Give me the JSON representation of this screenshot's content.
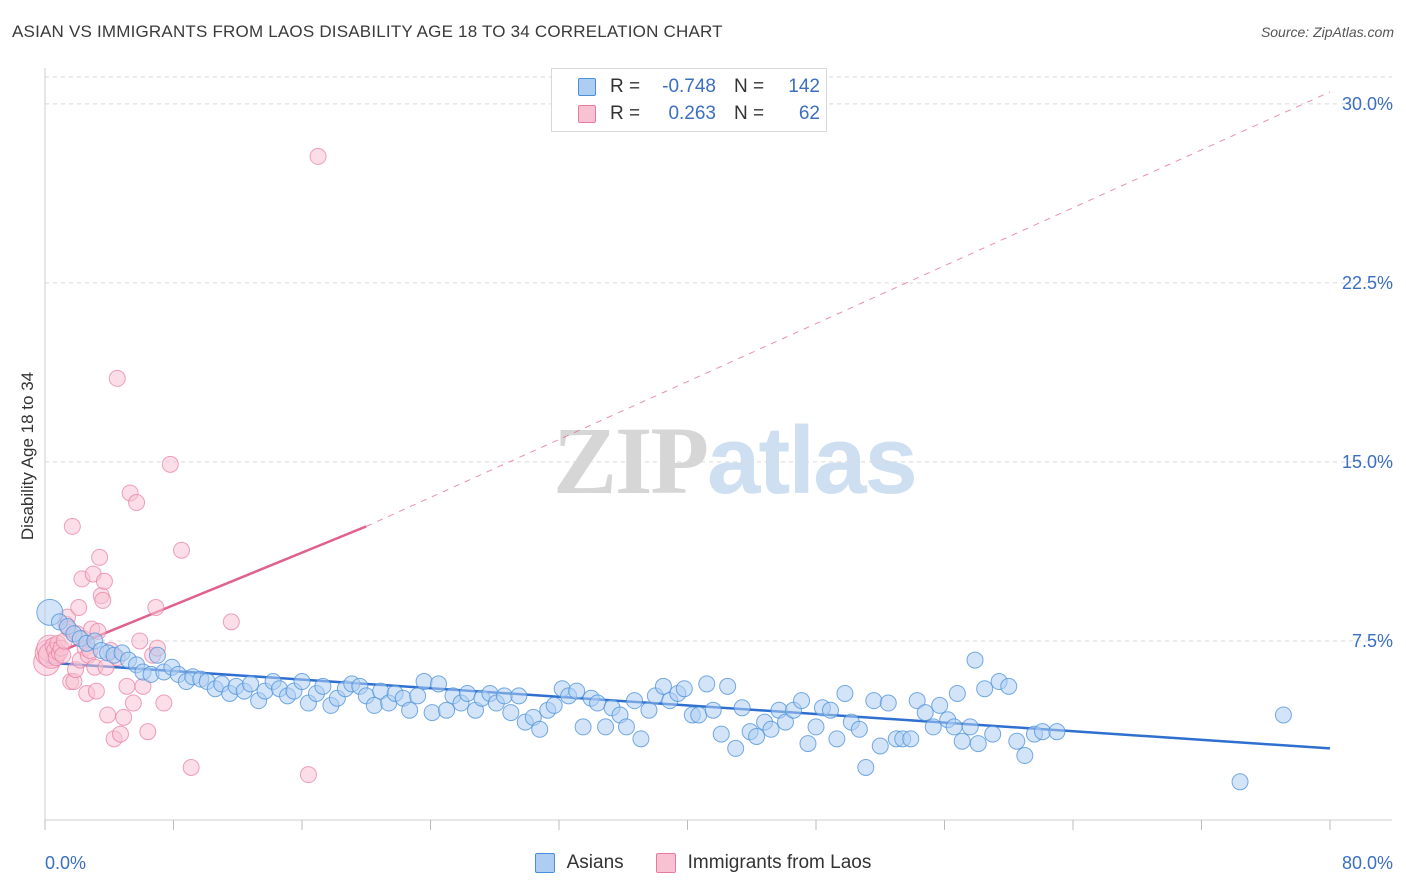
{
  "title": "ASIAN VS IMMIGRANTS FROM LAOS DISABILITY AGE 18 TO 34 CORRELATION CHART",
  "source": "Source: ZipAtlas.com",
  "watermark": {
    "zip": "ZIP",
    "atlas": "atlas"
  },
  "colors": {
    "asians": "#4a90d9",
    "asians_fill": "#aecdf3",
    "asians_line": "#2f6fcf",
    "laos": "#e87aa0",
    "laos_fill": "#f7c3d3",
    "laos_line": "#e0608e",
    "axis_label": "#3a6fc2",
    "grid": "#d9d9d9"
  },
  "legend": {
    "asians": {
      "r_label": "R =",
      "r_value": "-0.748",
      "n_label": "N =",
      "n_value": "142"
    },
    "laos": {
      "r_label": "R =",
      "r_value": "0.263",
      "n_label": "N =",
      "n_value": "62"
    }
  },
  "chart_data": {
    "type": "scatter",
    "title": "ASIAN VS IMMIGRANTS FROM LAOS DISABILITY AGE 18 TO 34 CORRELATION CHART",
    "xlabel": "",
    "ylabel": "Disability Age 18 to 34",
    "xlim": [
      0,
      80
    ],
    "ylim": [
      0,
      31
    ],
    "x_tick_labels": [
      "0.0%",
      "80.0%"
    ],
    "y_ticks": [
      7.5,
      15.0,
      22.5,
      30.0
    ],
    "y_tick_labels": [
      "7.5%",
      "15.0%",
      "22.5%",
      "30.0%"
    ],
    "grid": true,
    "legend_position": "top-center",
    "series": [
      {
        "name": "Asians",
        "trend": {
          "x0": 0,
          "y0": 6.6,
          "x1": 80,
          "y1": 3.0
        },
        "points": [
          [
            0.3,
            8.7
          ],
          [
            0.9,
            8.3
          ],
          [
            1.4,
            8.1
          ],
          [
            1.8,
            7.8
          ],
          [
            2.2,
            7.6
          ],
          [
            2.6,
            7.4
          ],
          [
            3.1,
            7.5
          ],
          [
            3.5,
            7.1
          ],
          [
            3.9,
            7.0
          ],
          [
            4.3,
            6.9
          ],
          [
            4.8,
            7.0
          ],
          [
            5.2,
            6.7
          ],
          [
            5.7,
            6.5
          ],
          [
            6.1,
            6.2
          ],
          [
            6.6,
            6.1
          ],
          [
            7.0,
            6.9
          ],
          [
            7.4,
            6.2
          ],
          [
            7.9,
            6.4
          ],
          [
            8.3,
            6.1
          ],
          [
            8.8,
            5.8
          ],
          [
            9.2,
            6.0
          ],
          [
            9.7,
            5.9
          ],
          [
            10.1,
            5.8
          ],
          [
            10.6,
            5.5
          ],
          [
            11.0,
            5.7
          ],
          [
            11.5,
            5.3
          ],
          [
            11.9,
            5.6
          ],
          [
            12.4,
            5.4
          ],
          [
            12.8,
            5.7
          ],
          [
            13.3,
            5.0
          ],
          [
            13.7,
            5.4
          ],
          [
            14.2,
            5.8
          ],
          [
            14.6,
            5.5
          ],
          [
            15.1,
            5.2
          ],
          [
            15.5,
            5.4
          ],
          [
            16.0,
            5.8
          ],
          [
            16.4,
            4.9
          ],
          [
            16.9,
            5.3
          ],
          [
            17.3,
            5.6
          ],
          [
            17.8,
            4.8
          ],
          [
            18.2,
            5.1
          ],
          [
            18.7,
            5.5
          ],
          [
            19.1,
            5.7
          ],
          [
            19.6,
            5.6
          ],
          [
            20.0,
            5.2
          ],
          [
            20.5,
            4.8
          ],
          [
            20.9,
            5.4
          ],
          [
            21.4,
            4.9
          ],
          [
            21.8,
            5.3
          ],
          [
            22.3,
            5.1
          ],
          [
            22.7,
            4.6
          ],
          [
            23.2,
            5.2
          ],
          [
            23.6,
            5.8
          ],
          [
            24.1,
            4.5
          ],
          [
            24.5,
            5.7
          ],
          [
            25.0,
            4.6
          ],
          [
            25.4,
            5.2
          ],
          [
            25.9,
            4.9
          ],
          [
            26.3,
            5.3
          ],
          [
            26.8,
            4.6
          ],
          [
            27.2,
            5.1
          ],
          [
            27.7,
            5.3
          ],
          [
            28.1,
            4.9
          ],
          [
            28.6,
            5.2
          ],
          [
            29.0,
            4.5
          ],
          [
            29.5,
            5.2
          ],
          [
            29.9,
            4.1
          ],
          [
            30.4,
            4.3
          ],
          [
            30.8,
            3.8
          ],
          [
            31.3,
            4.6
          ],
          [
            31.7,
            4.8
          ],
          [
            32.2,
            5.5
          ],
          [
            32.6,
            5.2
          ],
          [
            33.1,
            5.4
          ],
          [
            33.5,
            3.9
          ],
          [
            34.0,
            5.1
          ],
          [
            34.4,
            4.9
          ],
          [
            34.9,
            3.9
          ],
          [
            35.3,
            4.7
          ],
          [
            35.8,
            4.4
          ],
          [
            36.2,
            3.9
          ],
          [
            36.7,
            5.0
          ],
          [
            37.1,
            3.4
          ],
          [
            37.6,
            4.6
          ],
          [
            38.0,
            5.2
          ],
          [
            38.5,
            5.6
          ],
          [
            38.9,
            5.0
          ],
          [
            39.4,
            5.3
          ],
          [
            39.8,
            5.5
          ],
          [
            40.3,
            4.4
          ],
          [
            40.7,
            4.4
          ],
          [
            41.2,
            5.7
          ],
          [
            41.6,
            4.6
          ],
          [
            42.1,
            3.6
          ],
          [
            42.5,
            5.6
          ],
          [
            43.0,
            3.0
          ],
          [
            43.4,
            4.7
          ],
          [
            43.9,
            3.7
          ],
          [
            44.3,
            3.5
          ],
          [
            44.8,
            4.1
          ],
          [
            45.2,
            3.8
          ],
          [
            45.7,
            4.6
          ],
          [
            46.1,
            4.1
          ],
          [
            46.6,
            4.6
          ],
          [
            47.1,
            5.0
          ],
          [
            47.5,
            3.2
          ],
          [
            48.0,
            3.9
          ],
          [
            48.4,
            4.7
          ],
          [
            48.9,
            4.6
          ],
          [
            49.3,
            3.4
          ],
          [
            49.8,
            5.3
          ],
          [
            50.2,
            4.1
          ],
          [
            50.7,
            3.8
          ],
          [
            51.1,
            2.2
          ],
          [
            51.6,
            5.0
          ],
          [
            52.0,
            3.1
          ],
          [
            52.5,
            4.9
          ],
          [
            53.0,
            3.4
          ],
          [
            53.4,
            3.4
          ],
          [
            53.9,
            3.4
          ],
          [
            54.3,
            5.0
          ],
          [
            54.8,
            4.5
          ],
          [
            55.3,
            3.9
          ],
          [
            55.7,
            4.8
          ],
          [
            56.2,
            4.2
          ],
          [
            56.6,
            3.9
          ],
          [
            57.1,
            3.3
          ],
          [
            57.6,
            3.9
          ],
          [
            58.1,
            3.2
          ],
          [
            58.5,
            5.5
          ],
          [
            59.0,
            3.6
          ],
          [
            59.4,
            5.8
          ],
          [
            60.0,
            5.6
          ],
          [
            60.5,
            3.3
          ],
          [
            61.0,
            2.7
          ],
          [
            61.6,
            3.6
          ],
          [
            62.1,
            3.7
          ],
          [
            63.0,
            3.7
          ],
          [
            74.4,
            1.6
          ],
          [
            77.1,
            4.4
          ],
          [
            56.8,
            5.3
          ],
          [
            57.9,
            6.7
          ]
        ]
      },
      {
        "name": "Immigrants from Laos",
        "trend": {
          "x0": 0,
          "y0": 6.8,
          "x1": 20,
          "y1": 12.3,
          "dash_to_x": 80,
          "dash_to_y": 30.5
        },
        "points": [
          [
            0.1,
            6.6
          ],
          [
            0.2,
            7.0
          ],
          [
            0.3,
            7.2
          ],
          [
            0.4,
            6.9
          ],
          [
            0.5,
            7.3
          ],
          [
            0.6,
            7.1
          ],
          [
            0.7,
            6.8
          ],
          [
            0.8,
            7.4
          ],
          [
            0.9,
            7.0
          ],
          [
            1.0,
            7.2
          ],
          [
            1.1,
            6.9
          ],
          [
            1.2,
            7.5
          ],
          [
            1.3,
            8.2
          ],
          [
            1.4,
            8.5
          ],
          [
            1.5,
            8.0
          ],
          [
            1.6,
            5.8
          ],
          [
            1.7,
            12.3
          ],
          [
            1.8,
            5.8
          ],
          [
            1.9,
            6.3
          ],
          [
            2.0,
            7.8
          ],
          [
            2.1,
            8.9
          ],
          [
            2.2,
            6.7
          ],
          [
            2.3,
            10.1
          ],
          [
            2.4,
            7.6
          ],
          [
            2.5,
            7.2
          ],
          [
            2.6,
            5.3
          ],
          [
            2.7,
            6.9
          ],
          [
            2.8,
            7.1
          ],
          [
            2.9,
            8.0
          ],
          [
            3.0,
            10.3
          ],
          [
            3.1,
            6.4
          ],
          [
            3.2,
            5.4
          ],
          [
            3.3,
            7.9
          ],
          [
            3.4,
            11.0
          ],
          [
            3.5,
            9.4
          ],
          [
            3.6,
            9.2
          ],
          [
            3.7,
            10.0
          ],
          [
            3.8,
            6.4
          ],
          [
            3.9,
            4.4
          ],
          [
            4.1,
            7.1
          ],
          [
            4.3,
            3.4
          ],
          [
            4.5,
            6.8
          ],
          [
            4.7,
            3.6
          ],
          [
            4.9,
            4.3
          ],
          [
            5.1,
            5.6
          ],
          [
            5.3,
            13.7
          ],
          [
            5.5,
            4.9
          ],
          [
            5.7,
            13.3
          ],
          [
            5.9,
            7.5
          ],
          [
            6.1,
            5.6
          ],
          [
            6.4,
            3.7
          ],
          [
            6.7,
            6.9
          ],
          [
            7.0,
            7.2
          ],
          [
            7.4,
            4.9
          ],
          [
            7.8,
            14.9
          ],
          [
            8.5,
            11.3
          ],
          [
            9.1,
            2.2
          ],
          [
            11.6,
            8.3
          ],
          [
            16.4,
            1.9
          ],
          [
            17.0,
            27.8
          ],
          [
            4.5,
            18.5
          ],
          [
            6.9,
            8.9
          ]
        ]
      }
    ]
  },
  "bottom_legend": [
    "Asians",
    "Immigrants from Laos"
  ]
}
